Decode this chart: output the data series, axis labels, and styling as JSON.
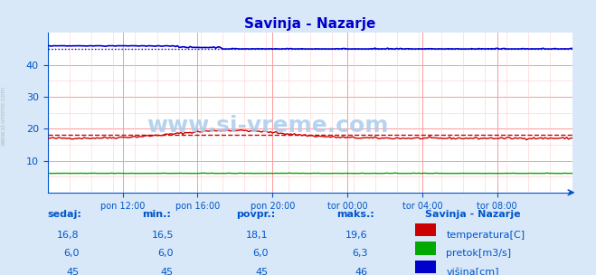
{
  "title": "Savinja - Nazarje",
  "bg_color": "#d8e8f8",
  "plot_bg_color": "#ffffff",
  "grid_color_major": "#ff9999",
  "grid_color_minor": "#ffcccc",
  "watermark": "www.si-vreme.com",
  "xlabel_ticks": [
    "pon 12:00",
    "pon 16:00",
    "pon 20:00",
    "tor 00:00",
    "tor 04:00",
    "tor 08:00"
  ],
  "ylim": [
    0,
    50
  ],
  "yticks": [
    10,
    20,
    30,
    40
  ],
  "n_points": 288,
  "temp_min": 16.5,
  "temp_max": 19.6,
  "temp_avg": 18.1,
  "temp_current": 16.8,
  "pretok_min": 6.0,
  "pretok_max": 6.3,
  "pretok_avg": 6.0,
  "pretok_current": 6.0,
  "visina_min": 45,
  "visina_max": 46,
  "visina_avg": 45,
  "visina_current": 45,
  "temp_color": "#cc0000",
  "pretok_color": "#00aa00",
  "visina_color": "#0000cc",
  "avg_line_color": "#cc0000",
  "title_color": "#0000cc",
  "tick_color": "#0055cc",
  "table_header_color": "#0055cc",
  "table_value_color": "#0055cc",
  "legend_title": "Savinja - Nazarje",
  "legend_items": [
    "temperatura[C]",
    "pretok[m3/s]",
    "višina[cm]"
  ],
  "legend_colors": [
    "#cc0000",
    "#00aa00",
    "#0000cc"
  ],
  "table_cols": [
    "sedaj:",
    "min.:",
    "povpr.:",
    "maks.:"
  ],
  "table_rows": [
    [
      "16,8",
      "16,5",
      "18,1",
      "19,6"
    ],
    [
      "6,0",
      "6,0",
      "6,0",
      "6,3"
    ],
    [
      "45",
      "45",
      "45",
      "46"
    ]
  ]
}
